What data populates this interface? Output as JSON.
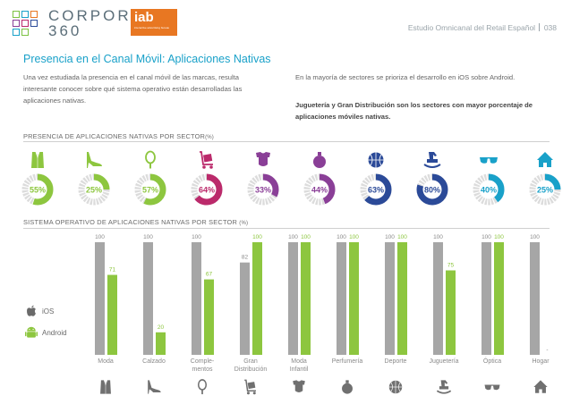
{
  "header": {
    "brand_line1": "CORPORA",
    "brand_line2": "360",
    "iab_logo": "iab",
    "iab_tagline": "interactive advertising bureau",
    "report_name": "Estudio Omnicanal del Retail Español",
    "page_number": "038"
  },
  "page": {
    "title": "Presencia en el Canal Móvil: Aplicaciones Nativas",
    "intro_left": "Una vez estudiada la presencia en el canal móvil de las marcas, resulta interesante conocer sobre qué sistema operativo están desarrolladas las aplicaciones nativas.",
    "intro_right": "En la mayoría de sectores se prioriza el desarrollo en iOS sobre Android.",
    "intro_right_bold": "Juguetería y Gran Distribución son los sectores con mayor porcentaje de aplicaciones móviles nativas."
  },
  "colors": {
    "ios": "#a6a6a6",
    "android": "#8dc63f",
    "ring_track": "#dcdcdc",
    "title_blue": "#19a1c9"
  },
  "chart_data": [
    {
      "type": "donut",
      "title": "PRESENCIA DE APLICACIONES NATIVAS POR SECTOR",
      "unit": "(%)",
      "items": [
        {
          "icon": "shirt-icon",
          "value": 55,
          "label": "55%",
          "color": "#8dc63f"
        },
        {
          "icon": "heel-shoe-icon",
          "value": 25,
          "label": "25%",
          "color": "#8dc63f"
        },
        {
          "icon": "mirror-icon",
          "value": 57,
          "label": "57%",
          "color": "#8dc63f"
        },
        {
          "icon": "trolley-icon",
          "value": 64,
          "label": "64%",
          "color": "#bb2a6b"
        },
        {
          "icon": "baby-onesie-icon",
          "value": 33,
          "label": "33%",
          "color": "#8a3f97"
        },
        {
          "icon": "perfume-bottle-icon",
          "value": 44,
          "label": "44%",
          "color": "#8a3f97"
        },
        {
          "icon": "basketball-icon",
          "value": 63,
          "label": "63%",
          "color": "#2b4a98"
        },
        {
          "icon": "rocking-horse-icon",
          "value": 80,
          "label": "80%",
          "color": "#2b4a98"
        },
        {
          "icon": "sunglasses-icon",
          "value": 40,
          "label": "40%",
          "color": "#19a1c9"
        },
        {
          "icon": "house-icon",
          "value": 25,
          "label": "25%",
          "color": "#19a1c9"
        }
      ]
    },
    {
      "type": "bar",
      "title": "SISTEMA OPERATIVO DE APLICACIONES NATIVAS POR SECTOR",
      "unit": "(%)",
      "categories": [
        [
          "Moda"
        ],
        [
          "Calzado"
        ],
        [
          "Comple-",
          "mentos"
        ],
        [
          "Gran",
          "Distribución"
        ],
        [
          "Moda",
          "Infantil"
        ],
        [
          "Perfumería"
        ],
        [
          "Deporte"
        ],
        [
          "Juguetería"
        ],
        [
          "Óptica"
        ],
        [
          "Hogar"
        ]
      ],
      "ylim": [
        0,
        100
      ],
      "series": [
        {
          "name": "iOS",
          "color": "#a6a6a6",
          "values": [
            100,
            100,
            100,
            82,
            100,
            100,
            100,
            100,
            100,
            100
          ],
          "labels": [
            "100",
            "100",
            "100",
            "82",
            "100",
            "100",
            "100",
            "100",
            "100",
            "100"
          ]
        },
        {
          "name": "Android",
          "color": "#8dc63f",
          "values": [
            71,
            20,
            67,
            100,
            100,
            100,
            100,
            75,
            100,
            0
          ],
          "labels": [
            "71",
            "20",
            "67",
            "100",
            "100",
            "100",
            "100",
            "75",
            "100",
            "-"
          ]
        }
      ],
      "bottom_icons": [
        "shirt-icon",
        "heel-shoe-icon",
        "mirror-icon",
        "trolley-icon",
        "baby-onesie-icon",
        "perfume-bottle-icon",
        "basketball-icon",
        "rocking-horse-icon",
        "sunglasses-icon",
        "house-icon"
      ],
      "legend": [
        {
          "label": "iOS",
          "icon": "apple-icon"
        },
        {
          "label": "Android",
          "icon": "android-icon"
        }
      ]
    }
  ]
}
